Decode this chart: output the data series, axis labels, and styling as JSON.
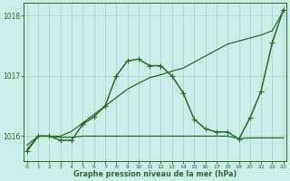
{
  "title": "Graphe pression niveau de la mer (hPa)",
  "background_color": "#cceee8",
  "grid_color": "#aad8d0",
  "line_color": "#2d6b2d",
  "xlim": [
    -0.3,
    23.3
  ],
  "ylim": [
    1015.58,
    1018.22
  ],
  "yticks": [
    1016,
    1017,
    1018
  ],
  "xticks": [
    0,
    1,
    2,
    3,
    4,
    5,
    6,
    7,
    8,
    9,
    10,
    11,
    12,
    13,
    14,
    15,
    16,
    17,
    18,
    19,
    20,
    21,
    22,
    23
  ],
  "series": [
    {
      "x": [
        0,
        1,
        2,
        3,
        4,
        5,
        6,
        7,
        8,
        9,
        10,
        11,
        12,
        13,
        14,
        15,
        16,
        17,
        18,
        19,
        20,
        21,
        22,
        23
      ],
      "y": [
        1015.78,
        1016.0,
        1016.0,
        1015.98,
        1015.98,
        1016.0,
        1016.0,
        1016.0,
        1016.0,
        1016.0,
        1016.0,
        1016.0,
        1016.0,
        1016.0,
        1016.0,
        1016.0,
        1016.0,
        1016.0,
        1016.0,
        1015.96,
        1015.97,
        1015.97,
        1015.97,
        1015.97
      ],
      "marker": null,
      "lw": 0.9
    },
    {
      "x": [
        0,
        1,
        2,
        3,
        4,
        5,
        6,
        7,
        8,
        9,
        10,
        11,
        12,
        13,
        14,
        15,
        16,
        17,
        18,
        19,
        20,
        21,
        22,
        23
      ],
      "y": [
        1015.85,
        1016.0,
        1016.0,
        1016.0,
        1016.08,
        1016.22,
        1016.36,
        1016.5,
        1016.64,
        1016.78,
        1016.88,
        1016.97,
        1017.02,
        1017.08,
        1017.13,
        1017.23,
        1017.33,
        1017.43,
        1017.53,
        1017.58,
        1017.63,
        1017.68,
        1017.75,
        1018.08
      ],
      "marker": null,
      "lw": 0.9
    },
    {
      "x": [
        0,
        1,
        2,
        3,
        4,
        5,
        6,
        7,
        8,
        9,
        10,
        11,
        12,
        13,
        14,
        15,
        16,
        17,
        18,
        19,
        20,
        21,
        22,
        23
      ],
      "y": [
        1015.75,
        1016.0,
        1016.0,
        1015.93,
        1015.93,
        1016.2,
        1016.32,
        1016.5,
        1017.0,
        1017.25,
        1017.28,
        1017.17,
        1017.17,
        1017.0,
        1016.72,
        1016.28,
        1016.12,
        1016.07,
        1016.07,
        1015.95,
        1016.3,
        1016.75,
        1017.55,
        1018.1
      ],
      "marker": "+",
      "lw": 1.1,
      "ms": 4.0
    }
  ]
}
